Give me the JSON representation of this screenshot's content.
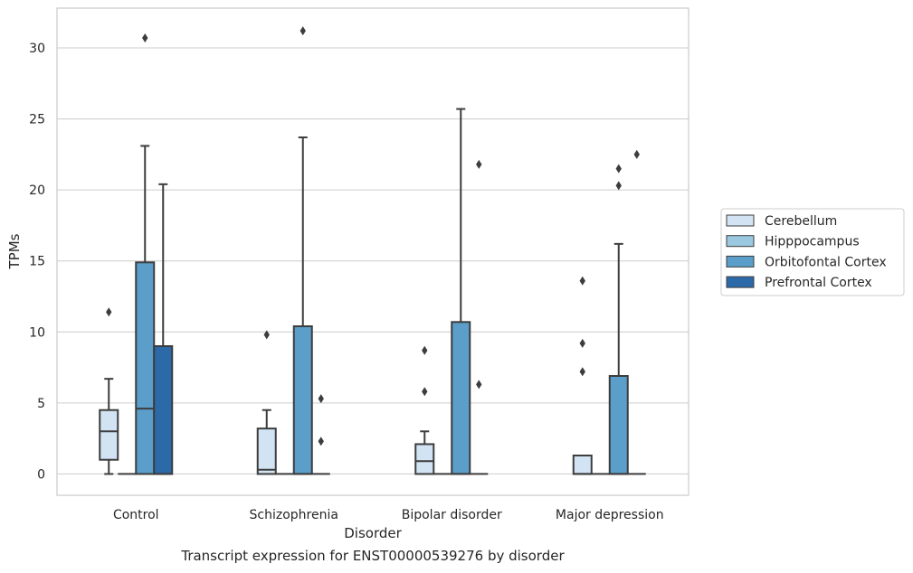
{
  "caption": "Transcript expression for ENST00000539276 by disorder",
  "chart_data": {
    "type": "boxplot",
    "xlabel": "Disorder",
    "ylabel": "TPMs",
    "ylim": [
      -1.5,
      32.8
    ],
    "yticks": [
      0,
      5,
      10,
      15,
      20,
      25,
      30
    ],
    "grid": "horizontal",
    "legend_position": "right",
    "categories": [
      "Control",
      "Schizophrenia",
      "Bipolar disorder",
      "Major depression"
    ],
    "series": [
      {
        "name": "Cerebellum",
        "color": "#d2e3f3",
        "boxes": [
          {
            "q1": 1.0,
            "median": 3.0,
            "q3": 4.5,
            "whisker_low": 0,
            "whisker_high": 6.7,
            "outliers": [
              11.4
            ]
          },
          {
            "q1": 0.0,
            "median": 0.3,
            "q3": 3.2,
            "whisker_low": 0,
            "whisker_high": 4.5,
            "outliers": [
              9.8
            ]
          },
          {
            "q1": 0.0,
            "median": 0.9,
            "q3": 2.1,
            "whisker_low": 0,
            "whisker_high": 3.0,
            "outliers": [
              5.8,
              8.7
            ]
          },
          {
            "q1": 0.0,
            "median": 0.0,
            "q3": 1.3,
            "whisker_low": 0,
            "whisker_high": 1.3,
            "outliers": [
              7.2,
              9.2,
              13.6
            ]
          }
        ]
      },
      {
        "name": "Hipppocampus",
        "color": "#9ac8e0",
        "boxes": [
          {
            "q1": 0,
            "median": 0,
            "q3": 0,
            "whisker_low": 0,
            "whisker_high": 0,
            "outliers": []
          },
          {
            "q1": 0,
            "median": 0,
            "q3": 0,
            "whisker_low": 0,
            "whisker_high": 0,
            "outliers": []
          },
          {
            "q1": 0,
            "median": 0,
            "q3": 0,
            "whisker_low": 0,
            "whisker_high": 0,
            "outliers": []
          },
          {
            "q1": 0,
            "median": 0,
            "q3": 0,
            "whisker_low": 0,
            "whisker_high": 0,
            "outliers": []
          }
        ]
      },
      {
        "name": "Orbitofontal Cortex",
        "color": "#5a9ec9",
        "boxes": [
          {
            "q1": 0.0,
            "median": 4.6,
            "q3": 14.9,
            "whisker_low": 0,
            "whisker_high": 23.1,
            "outliers": [
              30.7
            ]
          },
          {
            "q1": 0.0,
            "median": 0.0,
            "q3": 10.4,
            "whisker_low": 0,
            "whisker_high": 23.7,
            "outliers": [
              31.2
            ]
          },
          {
            "q1": 0.0,
            "median": 0.0,
            "q3": 10.7,
            "whisker_low": 0,
            "whisker_high": 25.7,
            "outliers": []
          },
          {
            "q1": 0.0,
            "median": 0.0,
            "q3": 6.9,
            "whisker_low": 0,
            "whisker_high": 16.2,
            "outliers": [
              20.3,
              21.5
            ]
          }
        ]
      },
      {
        "name": "Prefrontal Cortex",
        "color": "#2b69a8",
        "boxes": [
          {
            "q1": 0.0,
            "median": 0.0,
            "q3": 9.0,
            "whisker_low": 0,
            "whisker_high": 20.4,
            "outliers": []
          },
          {
            "q1": 0,
            "median": 0,
            "q3": 0,
            "whisker_low": 0,
            "whisker_high": 0,
            "outliers": [
              2.3,
              5.3
            ]
          },
          {
            "q1": 0,
            "median": 0,
            "q3": 0,
            "whisker_low": 0,
            "whisker_high": 0,
            "outliers": [
              6.3,
              21.8
            ]
          },
          {
            "q1": 0,
            "median": 0,
            "q3": 0,
            "whisker_low": 0,
            "whisker_high": 0,
            "outliers": [
              22.5
            ]
          }
        ]
      }
    ]
  }
}
